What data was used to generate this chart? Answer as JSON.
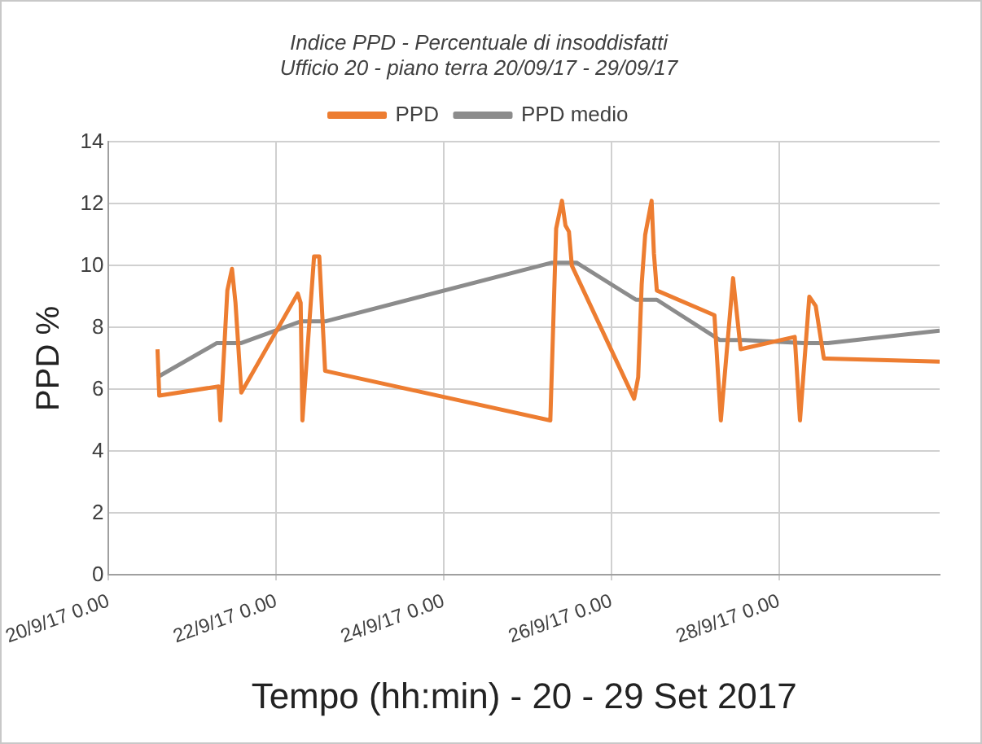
{
  "chart_data": {
    "type": "line",
    "title": "Indice PPD - Percentuale di insoddisfatti",
    "subtitle": "Ufficio 20 - piano terra 20/09/17 - 29/09/17",
    "xlabel": "Tempo (hh:min) - 20 - 29 Set 2017",
    "ylabel": "PPD %",
    "xlim": [
      "2017-09-20T00:00",
      "2017-09-29T22:00"
    ],
    "xticks": [
      {
        "value": "2017-09-20T00:00",
        "label": "20/9/17 0.00"
      },
      {
        "value": "2017-09-22T00:00",
        "label": "22/9/17 0.00"
      },
      {
        "value": "2017-09-24T00:00",
        "label": "24/9/17 0.00"
      },
      {
        "value": "2017-09-26T00:00",
        "label": "26/9/17 0.00"
      },
      {
        "value": "2017-09-28T00:00",
        "label": "28/9/17 0.00"
      }
    ],
    "ylim": [
      0,
      14
    ],
    "yticks": [
      0,
      2,
      4,
      6,
      8,
      10,
      12,
      14
    ],
    "grid": true,
    "legend": "top",
    "marker": "none",
    "line_style": "solid",
    "series": [
      {
        "name": "PPD",
        "color": "#ed7d31",
        "x": [
          "2017-09-20T14:00",
          "2017-09-20T14:30",
          "2017-09-21T07:30",
          "2017-09-21T08:00",
          "2017-09-21T10:00",
          "2017-09-21T11:20",
          "2017-09-21T12:20",
          "2017-09-21T14:00",
          "2017-09-22T06:10",
          "2017-09-22T07:00",
          "2017-09-22T07:30",
          "2017-09-22T10:50",
          "2017-09-22T12:20",
          "2017-09-22T14:00",
          "2017-09-25T06:30",
          "2017-09-25T08:10",
          "2017-09-25T09:50",
          "2017-09-25T10:50",
          "2017-09-25T11:50",
          "2017-09-25T12:40",
          "2017-09-26T06:30",
          "2017-09-26T07:40",
          "2017-09-26T08:40",
          "2017-09-26T09:40",
          "2017-09-26T11:30",
          "2017-09-26T12:10",
          "2017-09-26T13:00",
          "2017-09-27T05:30",
          "2017-09-27T07:20",
          "2017-09-27T10:50",
          "2017-09-27T13:00",
          "2017-09-28T04:30",
          "2017-09-28T06:00",
          "2017-09-28T08:40",
          "2017-09-28T10:30",
          "2017-09-28T12:50",
          "2017-09-29T22:00"
        ],
        "values": [
          7.3,
          5.8,
          6.1,
          5.0,
          9.2,
          9.9,
          8.8,
          5.9,
          9.1,
          8.8,
          5.0,
          10.3,
          10.3,
          6.6,
          5.0,
          11.2,
          12.1,
          11.3,
          11.1,
          10.0,
          5.7,
          6.4,
          9.4,
          11.0,
          12.1,
          10.4,
          9.2,
          8.4,
          5.0,
          9.6,
          7.3,
          7.7,
          5.0,
          9.0,
          8.7,
          7.0,
          6.9
        ]
      },
      {
        "name": "PPD medio",
        "color": "#8c8c8c",
        "x": [
          "2017-09-20T14:00",
          "2017-09-21T07:00",
          "2017-09-21T14:00",
          "2017-09-22T07:00",
          "2017-09-22T14:00",
          "2017-09-25T07:00",
          "2017-09-25T14:00",
          "2017-09-26T07:00",
          "2017-09-26T13:00",
          "2017-09-27T07:00",
          "2017-09-27T14:00",
          "2017-09-28T07:00",
          "2017-09-28T14:00",
          "2017-09-29T22:00"
        ],
        "values": [
          6.4,
          7.5,
          7.5,
          8.2,
          8.2,
          10.1,
          10.1,
          8.9,
          8.9,
          7.6,
          7.6,
          7.5,
          7.5,
          7.9
        ]
      }
    ]
  }
}
